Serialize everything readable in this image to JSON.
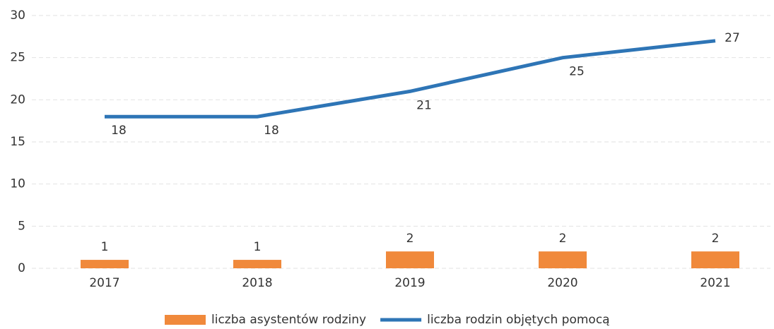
{
  "chart_data": {
    "type": "combo",
    "categories": [
      "2017",
      "2018",
      "2019",
      "2020",
      "2021"
    ],
    "series": [
      {
        "name": "liczba asystentów rodziny",
        "type": "bar",
        "color": "#f0893b",
        "values": [
          1,
          1,
          2,
          2,
          2
        ]
      },
      {
        "name": "liczba rodzin objętych pomocą",
        "type": "line",
        "color": "#2e75b6",
        "values": [
          18,
          18,
          21,
          25,
          27
        ]
      }
    ],
    "ylim": [
      0,
      30
    ],
    "yticks": [
      0,
      5,
      10,
      15,
      20,
      25,
      30
    ],
    "grid": true,
    "legend": "bottom"
  }
}
